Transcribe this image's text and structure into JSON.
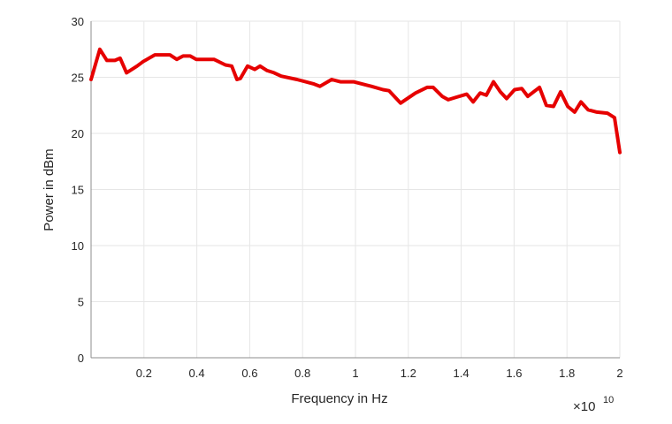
{
  "chart_data": {
    "type": "line",
    "title": "",
    "xlabel": "Frequency in Hz",
    "ylabel": "Power in dBm",
    "x_multiplier_label": "×",
    "x_multiplier_base": "10",
    "x_multiplier_exp": "10",
    "xlim": [
      0,
      2
    ],
    "ylim": [
      0,
      30
    ],
    "grid": true,
    "xticks": [
      0.2,
      0.4,
      0.6,
      0.8,
      1,
      1.2,
      1.4,
      1.6,
      1.8,
      2
    ],
    "xtick_labels": [
      "0.2",
      "0.4",
      "0.6",
      "0.8",
      "1",
      "1.2",
      "1.4",
      "1.6",
      "1.8",
      "2"
    ],
    "yticks": [
      0,
      5,
      10,
      15,
      20,
      25,
      30
    ],
    "ytick_labels": [
      "0",
      "5",
      "10",
      "15",
      "20",
      "25",
      "30"
    ],
    "series": [
      {
        "name": "Power",
        "color": "#e60000",
        "x": [
          0,
          0.033,
          0.06,
          0.09,
          0.11,
          0.134,
          0.174,
          0.197,
          0.241,
          0.274,
          0.298,
          0.324,
          0.348,
          0.375,
          0.398,
          0.441,
          0.465,
          0.508,
          0.532,
          0.552,
          0.565,
          0.592,
          0.619,
          0.639,
          0.666,
          0.692,
          0.719,
          0.779,
          0.843,
          0.866,
          0.91,
          0.943,
          0.993,
          1.043,
          1.06,
          1.104,
          1.127,
          1.171,
          1.227,
          1.271,
          1.294,
          1.328,
          1.351,
          1.378,
          1.421,
          1.445,
          1.472,
          1.495,
          1.522,
          1.548,
          1.572,
          1.602,
          1.629,
          1.652,
          1.696,
          1.722,
          1.749,
          1.776,
          1.803,
          1.829,
          1.853,
          1.88,
          1.913,
          1.953,
          1.98,
          2.0
        ],
        "y": [
          24.8,
          27.5,
          26.5,
          26.5,
          26.7,
          25.4,
          26.0,
          26.4,
          27.0,
          27.0,
          27.0,
          26.6,
          26.9,
          26.9,
          26.6,
          26.6,
          26.6,
          26.1,
          26.0,
          24.8,
          24.9,
          26.0,
          25.7,
          26.0,
          25.6,
          25.4,
          25.1,
          24.8,
          24.4,
          24.2,
          24.8,
          24.6,
          24.6,
          24.3,
          24.2,
          23.9,
          23.8,
          22.7,
          23.6,
          24.1,
          24.1,
          23.3,
          23.0,
          23.2,
          23.5,
          22.8,
          23.6,
          23.4,
          24.6,
          23.7,
          23.1,
          23.9,
          24.0,
          23.3,
          24.1,
          22.5,
          22.4,
          23.7,
          22.4,
          21.9,
          22.8,
          22.1,
          21.9,
          21.8,
          21.4,
          18.3
        ]
      }
    ]
  }
}
